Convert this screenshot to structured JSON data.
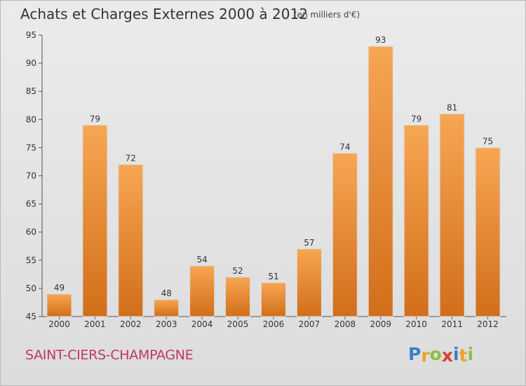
{
  "chart_data": {
    "type": "bar",
    "title": "Achats et Charges Externes 2000 à 2012",
    "subtitle": "(en milliers d'€)",
    "categories": [
      "2000",
      "2001",
      "2002",
      "2003",
      "2004",
      "2005",
      "2006",
      "2007",
      "2008",
      "2009",
      "2010",
      "2011",
      "2012"
    ],
    "values": [
      49,
      79,
      72,
      48,
      54,
      52,
      51,
      57,
      74,
      93,
      79,
      81,
      75
    ],
    "ylim": [
      45,
      95
    ],
    "yticks": [
      45,
      50,
      55,
      60,
      65,
      70,
      75,
      80,
      85,
      90,
      95
    ],
    "grid": false,
    "bar_color": "#f0903a"
  },
  "place_name": "SAINT-CIERS-CHAMPAGNE",
  "logo": {
    "letters": [
      "P",
      "r",
      "o",
      "x",
      "i",
      "t",
      "i"
    ],
    "colors": [
      "#3a7fc4",
      "#e8a42a",
      "#8cbf3f",
      "#d8402f",
      "#3a7fc4",
      "#e8a42a",
      "#8cbf3f"
    ]
  }
}
